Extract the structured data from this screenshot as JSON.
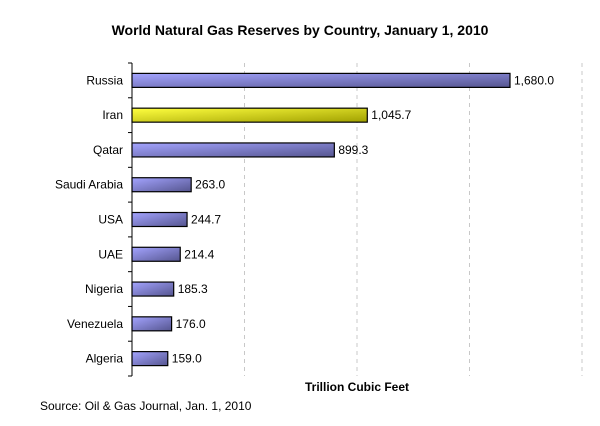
{
  "chart_data": {
    "type": "bar",
    "orientation": "horizontal",
    "title": "World Natural Gas Reserves by Country, January 1, 2010",
    "xlabel": "Trillion Cubic Feet",
    "ylabel": "",
    "source": "Source: Oil & Gas Journal, Jan. 1, 2010",
    "categories": [
      "Russia",
      "Iran",
      "Qatar",
      "Saudi Arabia",
      "USA",
      "UAE",
      "Nigeria",
      "Venezuela",
      "Algeria"
    ],
    "values": [
      1680.0,
      1045.7,
      899.3,
      263.0,
      244.7,
      214.4,
      185.3,
      176.0,
      159.0
    ],
    "data_labels": [
      "1,680.0",
      "1,045.7",
      "899.3",
      "263.0",
      "244.7",
      "214.4",
      "185.3",
      "176.0",
      "159.0"
    ],
    "xlim": [
      0,
      2000
    ],
    "grid": {
      "vertical": true,
      "style": "dashed",
      "interval": 500
    },
    "x_tick_labels_shown": false,
    "highlight_category": "Iran",
    "colors": {
      "bar": "#9a9af5",
      "bar_dark": "#5a5a96",
      "highlight": "#ffff33",
      "highlight_dark": "#a8a800",
      "grid": "#c8c8c8"
    }
  }
}
